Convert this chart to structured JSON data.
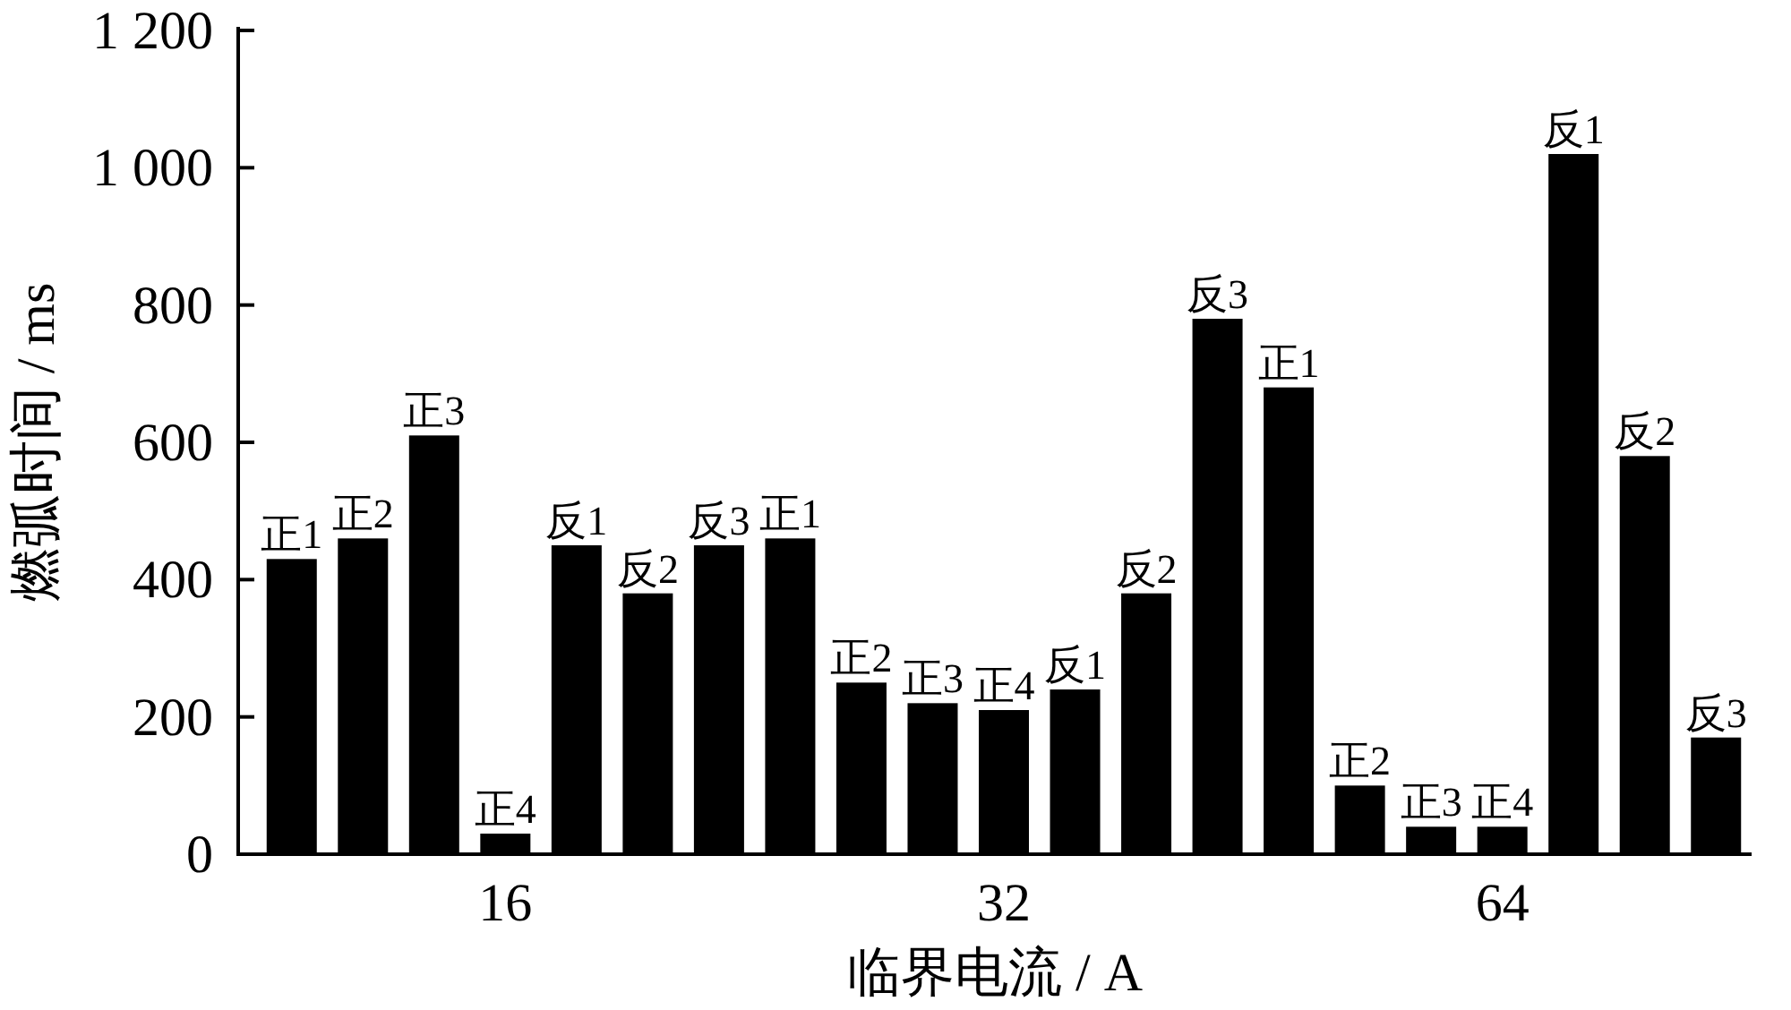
{
  "chart_data": {
    "type": "bar",
    "xlabel": "临界电流 / A",
    "ylabel": "燃弧时间 / ms",
    "categories": [
      null,
      null,
      null,
      "16",
      null,
      null,
      null,
      null,
      null,
      null,
      "32",
      null,
      null,
      null,
      null,
      null,
      null,
      "64",
      null,
      null,
      null
    ],
    "values": [
      430,
      460,
      610,
      30,
      450,
      380,
      450,
      460,
      250,
      220,
      210,
      240,
      380,
      780,
      680,
      100,
      40,
      40,
      1020,
      580,
      170
    ],
    "value_labels": [
      "正1",
      "正2",
      "正3",
      "正4",
      "反1",
      "反2",
      "反3",
      "正1",
      "正2",
      "正3",
      "正4",
      "反1",
      "反2",
      "反3",
      "正1",
      "正2",
      "正3",
      "正4",
      "反1",
      "反2",
      "反3"
    ],
    "color": "#000000",
    "ylim": [
      0,
      1200
    ],
    "yticks": [
      0,
      200,
      400,
      600,
      800,
      {
        "value": 1000,
        "label": "1 000"
      },
      {
        "value": 1200,
        "label": "1 200"
      }
    ],
    "grid": false
  }
}
